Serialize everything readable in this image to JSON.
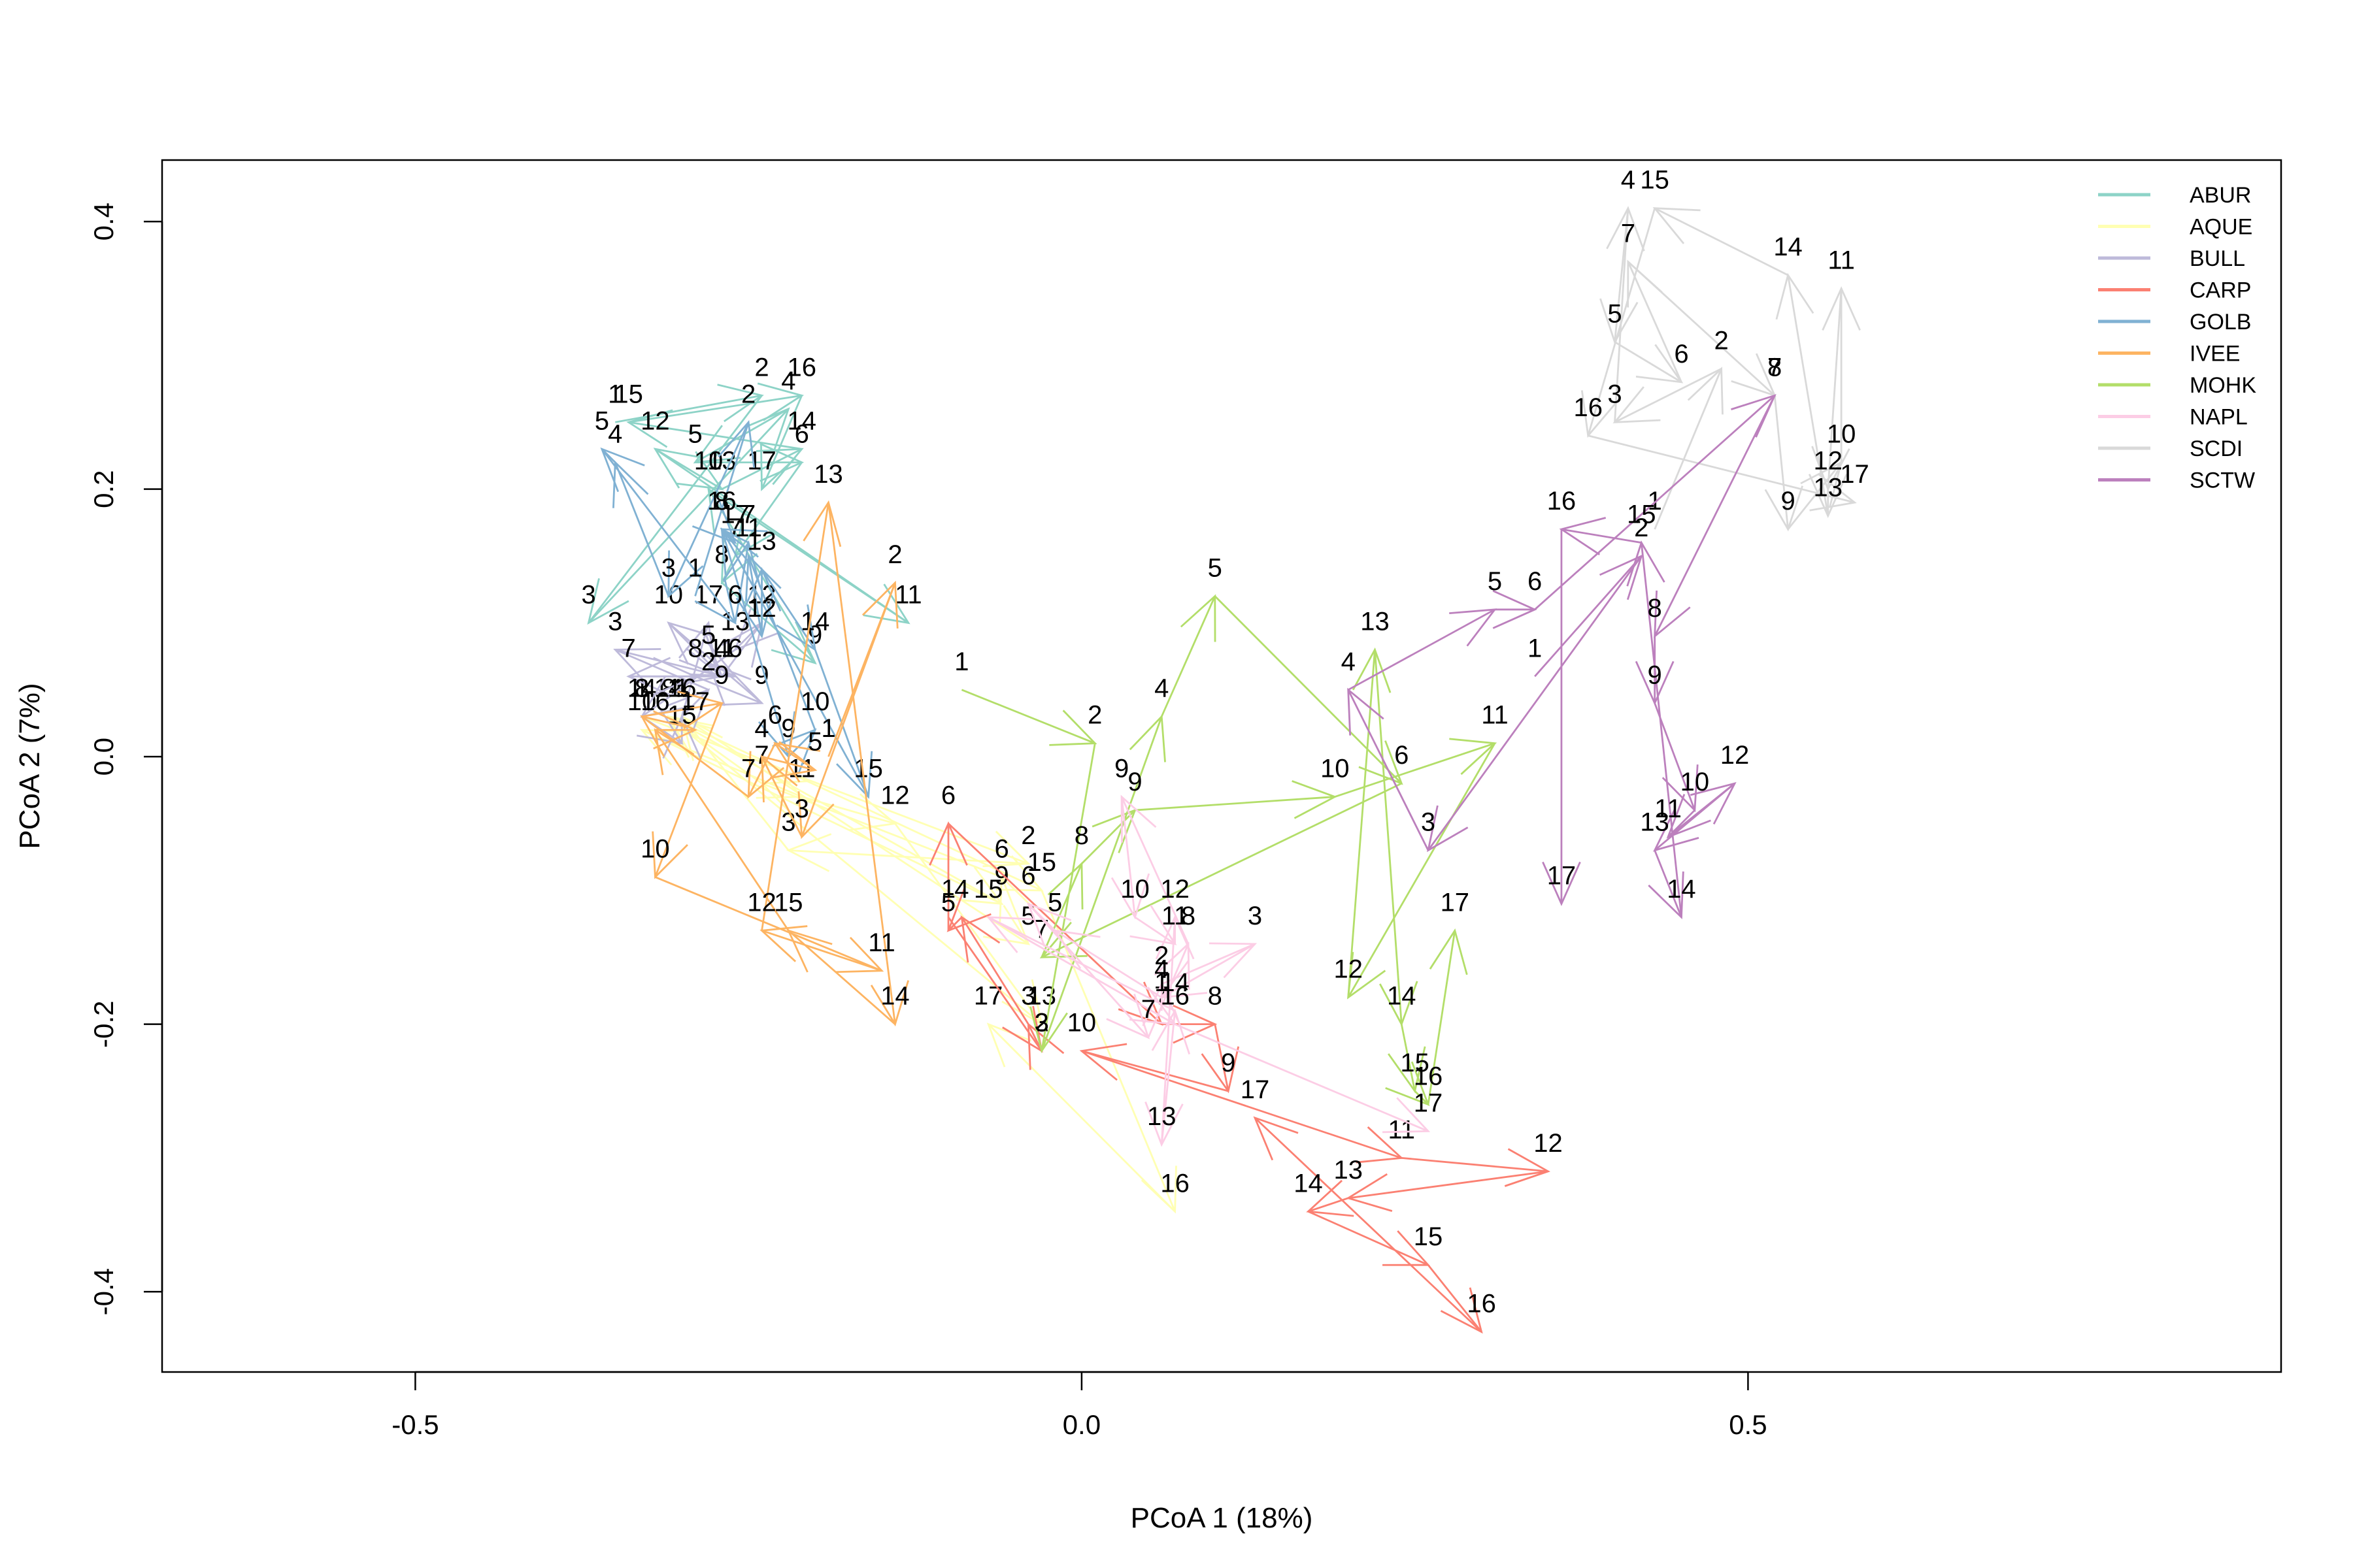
{
  "chart_data": {
    "type": "scatter",
    "xlabel": "PCoA 1 (18%)",
    "ylabel": "PCoA 2 (7%)",
    "xlim": [
      -0.69,
      0.9
    ],
    "ylim": [
      -0.46,
      0.446
    ],
    "x_ticks": [
      -0.5,
      0.0,
      0.5
    ],
    "x_tick_labels": [
      "-0.5",
      "0.0",
      "0.5"
    ],
    "y_ticks": [
      -0.4,
      -0.2,
      0.0,
      0.2,
      0.4
    ],
    "y_tick_labels": [
      "-0.4",
      "-0.2",
      "0.0",
      "0.2",
      "0.4"
    ],
    "legend_position": "top-right",
    "grid": false,
    "series": [
      {
        "name": "ABUR",
        "color": "#8DD3C7",
        "points": [
          {
            "label": "1",
            "x": -0.35,
            "y": 0.25
          },
          {
            "label": "2",
            "x": -0.24,
            "y": 0.27
          },
          {
            "label": "3",
            "x": -0.37,
            "y": 0.1
          },
          {
            "label": "4",
            "x": -0.22,
            "y": 0.26
          },
          {
            "label": "5",
            "x": -0.29,
            "y": 0.22
          },
          {
            "label": "6",
            "x": -0.21,
            "y": 0.22
          },
          {
            "label": "7",
            "x": -0.26,
            "y": 0.15
          },
          {
            "label": "8",
            "x": -0.27,
            "y": 0.13
          },
          {
            "label": "9",
            "x": -0.2,
            "y": 0.07
          },
          {
            "label": "10",
            "x": -0.28,
            "y": 0.2
          },
          {
            "label": "11",
            "x": -0.13,
            "y": 0.1
          },
          {
            "label": "12",
            "x": -0.32,
            "y": 0.23
          },
          {
            "label": "13",
            "x": -0.27,
            "y": 0.2
          },
          {
            "label": "14",
            "x": -0.21,
            "y": 0.23
          },
          {
            "label": "15",
            "x": -0.34,
            "y": 0.25
          },
          {
            "label": "16",
            "x": -0.21,
            "y": 0.27
          },
          {
            "label": "17",
            "x": -0.24,
            "y": 0.2
          }
        ]
      },
      {
        "name": "AQUE",
        "color": "#FFFFB3",
        "points": [
          {
            "label": "1",
            "x": -0.33,
            "y": 0.03
          },
          {
            "label": "2",
            "x": -0.04,
            "y": -0.08
          },
          {
            "label": "3",
            "x": -0.22,
            "y": -0.07
          },
          {
            "label": "4",
            "x": -0.3,
            "y": 0.03
          },
          {
            "label": "5",
            "x": -0.04,
            "y": -0.14
          },
          {
            "label": "6",
            "x": -0.06,
            "y": -0.09
          },
          {
            "label": "7",
            "x": -0.24,
            "y": -0.02
          },
          {
            "label": "8",
            "x": -0.31,
            "y": 0.03
          },
          {
            "label": "9",
            "x": -0.06,
            "y": -0.11
          },
          {
            "label": "10",
            "x": -0.33,
            "y": 0.02
          },
          {
            "label": "11",
            "x": -0.21,
            "y": -0.03
          },
          {
            "label": "12",
            "x": -0.14,
            "y": -0.05
          },
          {
            "label": "13",
            "x": -0.03,
            "y": -0.2
          },
          {
            "label": "14",
            "x": -0.31,
            "y": 0.03
          },
          {
            "label": "15",
            "x": -0.03,
            "y": -0.1
          },
          {
            "label": "16",
            "x": 0.07,
            "y": -0.34
          },
          {
            "label": "17",
            "x": -0.07,
            "y": -0.2
          }
        ]
      },
      {
        "name": "BULL",
        "color": "#BEBADA",
        "points": [
          {
            "label": "1",
            "x": -0.3,
            "y": 0.03
          },
          {
            "label": "2",
            "x": -0.28,
            "y": 0.05
          },
          {
            "label": "3",
            "x": -0.35,
            "y": 0.08
          },
          {
            "label": "4",
            "x": -0.27,
            "y": 0.06
          },
          {
            "label": "5",
            "x": -0.28,
            "y": 0.07
          },
          {
            "label": "6",
            "x": -0.26,
            "y": 0.06
          },
          {
            "label": "7",
            "x": -0.34,
            "y": 0.06
          },
          {
            "label": "8",
            "x": -0.29,
            "y": 0.06
          },
          {
            "label": "9",
            "x": -0.24,
            "y": 0.04
          },
          {
            "label": "10",
            "x": -0.31,
            "y": 0.1
          },
          {
            "label": "11",
            "x": -0.27,
            "y": 0.06
          },
          {
            "label": "12",
            "x": -0.24,
            "y": 0.1
          },
          {
            "label": "13",
            "x": -0.26,
            "y": 0.08
          },
          {
            "label": "14",
            "x": -0.33,
            "y": 0.03
          },
          {
            "label": "15",
            "x": -0.3,
            "y": 0.01
          },
          {
            "label": "16",
            "x": -0.3,
            "y": 0.03
          },
          {
            "label": "17",
            "x": -0.28,
            "y": 0.1
          }
        ]
      },
      {
        "name": "CARP",
        "color": "#FB8072",
        "points": [
          {
            "label": "1",
            "x": -0.1,
            "y": -0.12
          },
          {
            "label": "2",
            "x": -0.03,
            "y": -0.22
          },
          {
            "label": "3",
            "x": -0.04,
            "y": -0.2
          },
          {
            "label": "4",
            "x": -0.09,
            "y": -0.12
          },
          {
            "label": "5",
            "x": -0.1,
            "y": -0.13
          },
          {
            "label": "6",
            "x": -0.1,
            "y": -0.05
          },
          {
            "label": "7",
            "x": 0.06,
            "y": -0.2
          },
          {
            "label": "8",
            "x": 0.1,
            "y": -0.2
          },
          {
            "label": "9",
            "x": 0.11,
            "y": -0.25
          },
          {
            "label": "10",
            "x": 0.0,
            "y": -0.22
          },
          {
            "label": "11",
            "x": 0.24,
            "y": -0.3
          },
          {
            "label": "12",
            "x": 0.35,
            "y": -0.31
          },
          {
            "label": "13",
            "x": 0.2,
            "y": -0.33
          },
          {
            "label": "14",
            "x": 0.17,
            "y": -0.34
          },
          {
            "label": "15",
            "x": 0.26,
            "y": -0.38
          },
          {
            "label": "16",
            "x": 0.3,
            "y": -0.43
          },
          {
            "label": "17",
            "x": 0.13,
            "y": -0.27
          }
        ]
      },
      {
        "name": "GOLB",
        "color": "#80B1D3",
        "points": [
          {
            "label": "1",
            "x": -0.29,
            "y": 0.12
          },
          {
            "label": "2",
            "x": -0.25,
            "y": 0.25
          },
          {
            "label": "3",
            "x": -0.31,
            "y": 0.12
          },
          {
            "label": "4",
            "x": -0.35,
            "y": 0.22
          },
          {
            "label": "5",
            "x": -0.36,
            "y": 0.23
          },
          {
            "label": "6",
            "x": -0.26,
            "y": 0.1
          },
          {
            "label": "7",
            "x": -0.25,
            "y": 0.16
          },
          {
            "label": "8",
            "x": -0.27,
            "y": 0.17
          },
          {
            "label": "9",
            "x": -0.22,
            "y": 0.0
          },
          {
            "label": "10",
            "x": -0.2,
            "y": 0.02
          },
          {
            "label": "11",
            "x": -0.25,
            "y": 0.15
          },
          {
            "label": "12",
            "x": -0.24,
            "y": 0.09
          },
          {
            "label": "13",
            "x": -0.24,
            "y": 0.14
          },
          {
            "label": "14",
            "x": -0.2,
            "y": 0.08
          },
          {
            "label": "15",
            "x": -0.16,
            "y": -0.03
          },
          {
            "label": "16",
            "x": -0.27,
            "y": 0.17
          },
          {
            "label": "17",
            "x": -0.26,
            "y": 0.16
          }
        ]
      },
      {
        "name": "IVEE",
        "color": "#FDB462",
        "points": [
          {
            "label": "1",
            "x": -0.19,
            "y": 0.0
          },
          {
            "label": "2",
            "x": -0.14,
            "y": 0.13
          },
          {
            "label": "3",
            "x": -0.21,
            "y": -0.06
          },
          {
            "label": "4",
            "x": -0.24,
            "y": 0.0
          },
          {
            "label": "5",
            "x": -0.2,
            "y": -0.01
          },
          {
            "label": "6",
            "x": -0.23,
            "y": 0.01
          },
          {
            "label": "7",
            "x": -0.25,
            "y": -0.03
          },
          {
            "label": "8",
            "x": -0.33,
            "y": 0.03
          },
          {
            "label": "9",
            "x": -0.27,
            "y": 0.04
          },
          {
            "label": "10",
            "x": -0.32,
            "y": -0.09
          },
          {
            "label": "11",
            "x": -0.15,
            "y": -0.16
          },
          {
            "label": "12",
            "x": -0.24,
            "y": -0.13
          },
          {
            "label": "13",
            "x": -0.19,
            "y": 0.19
          },
          {
            "label": "14",
            "x": -0.14,
            "y": -0.2
          },
          {
            "label": "15",
            "x": -0.22,
            "y": -0.13
          },
          {
            "label": "16",
            "x": -0.32,
            "y": 0.02
          },
          {
            "label": "17",
            "x": -0.29,
            "y": 0.02
          }
        ]
      },
      {
        "name": "MOHK",
        "color": "#B3DE69",
        "points": [
          {
            "label": "1",
            "x": -0.09,
            "y": 0.05
          },
          {
            "label": "2",
            "x": 0.01,
            "y": 0.01
          },
          {
            "label": "3",
            "x": -0.03,
            "y": -0.22
          },
          {
            "label": "4",
            "x": 0.06,
            "y": 0.03
          },
          {
            "label": "5",
            "x": 0.1,
            "y": 0.12
          },
          {
            "label": "6",
            "x": 0.24,
            "y": -0.02
          },
          {
            "label": "7",
            "x": -0.03,
            "y": -0.15
          },
          {
            "label": "8",
            "x": 0.0,
            "y": -0.08
          },
          {
            "label": "9",
            "x": 0.04,
            "y": -0.04
          },
          {
            "label": "10",
            "x": 0.19,
            "y": -0.03
          },
          {
            "label": "11",
            "x": 0.31,
            "y": 0.01
          },
          {
            "label": "12",
            "x": 0.2,
            "y": -0.18
          },
          {
            "label": "13",
            "x": 0.22,
            "y": 0.08
          },
          {
            "label": "14",
            "x": 0.24,
            "y": -0.2
          },
          {
            "label": "15",
            "x": 0.25,
            "y": -0.25
          },
          {
            "label": "16",
            "x": 0.26,
            "y": -0.26
          },
          {
            "label": "17",
            "x": 0.28,
            "y": -0.13
          }
        ]
      },
      {
        "name": "NAPL",
        "color": "#FCCDE5",
        "points": [
          {
            "label": "1",
            "x": 0.06,
            "y": -0.19
          },
          {
            "label": "2",
            "x": 0.06,
            "y": -0.17
          },
          {
            "label": "3",
            "x": 0.13,
            "y": -0.14
          },
          {
            "label": "4",
            "x": 0.06,
            "y": -0.18
          },
          {
            "label": "5",
            "x": -0.02,
            "y": -0.13
          },
          {
            "label": "6",
            "x": -0.04,
            "y": -0.11
          },
          {
            "label": "7",
            "x": 0.05,
            "y": -0.21
          },
          {
            "label": "8",
            "x": 0.08,
            "y": -0.14
          },
          {
            "label": "9",
            "x": 0.03,
            "y": -0.03
          },
          {
            "label": "10",
            "x": 0.04,
            "y": -0.12
          },
          {
            "label": "11",
            "x": 0.07,
            "y": -0.14
          },
          {
            "label": "12",
            "x": 0.07,
            "y": -0.12
          },
          {
            "label": "13",
            "x": 0.06,
            "y": -0.29
          },
          {
            "label": "14",
            "x": 0.07,
            "y": -0.19
          },
          {
            "label": "15",
            "x": -0.07,
            "y": -0.12
          },
          {
            "label": "16",
            "x": 0.07,
            "y": -0.2
          },
          {
            "label": "17",
            "x": 0.26,
            "y": -0.28
          }
        ]
      },
      {
        "name": "SCDI",
        "color": "#D9D9D9",
        "points": [
          {
            "label": "1",
            "x": 0.43,
            "y": 0.17
          },
          {
            "label": "2",
            "x": 0.48,
            "y": 0.29
          },
          {
            "label": "3",
            "x": 0.4,
            "y": 0.25
          },
          {
            "label": "4",
            "x": 0.41,
            "y": 0.41
          },
          {
            "label": "5",
            "x": 0.4,
            "y": 0.31
          },
          {
            "label": "6",
            "x": 0.45,
            "y": 0.28
          },
          {
            "label": "7",
            "x": 0.41,
            "y": 0.37
          },
          {
            "label": "8",
            "x": 0.52,
            "y": 0.27
          },
          {
            "label": "9",
            "x": 0.53,
            "y": 0.17
          },
          {
            "label": "10",
            "x": 0.57,
            "y": 0.22
          },
          {
            "label": "11",
            "x": 0.57,
            "y": 0.35
          },
          {
            "label": "12",
            "x": 0.56,
            "y": 0.2
          },
          {
            "label": "13",
            "x": 0.56,
            "y": 0.18
          },
          {
            "label": "14",
            "x": 0.53,
            "y": 0.36
          },
          {
            "label": "15",
            "x": 0.43,
            "y": 0.41
          },
          {
            "label": "16",
            "x": 0.38,
            "y": 0.24
          },
          {
            "label": "17",
            "x": 0.58,
            "y": 0.19
          }
        ]
      },
      {
        "name": "SCTW",
        "color": "#BC80BD",
        "points": [
          {
            "label": "1",
            "x": 0.34,
            "y": 0.06
          },
          {
            "label": "2",
            "x": 0.42,
            "y": 0.15
          },
          {
            "label": "3",
            "x": 0.26,
            "y": -0.07
          },
          {
            "label": "4",
            "x": 0.2,
            "y": 0.05
          },
          {
            "label": "5",
            "x": 0.31,
            "y": 0.11
          },
          {
            "label": "6",
            "x": 0.34,
            "y": 0.11
          },
          {
            "label": "7",
            "x": 0.52,
            "y": 0.27
          },
          {
            "label": "8",
            "x": 0.43,
            "y": 0.09
          },
          {
            "label": "9",
            "x": 0.43,
            "y": 0.04
          },
          {
            "label": "10",
            "x": 0.46,
            "y": -0.04
          },
          {
            "label": "11",
            "x": 0.44,
            "y": -0.06
          },
          {
            "label": "12",
            "x": 0.49,
            "y": -0.02
          },
          {
            "label": "13",
            "x": 0.43,
            "y": -0.07
          },
          {
            "label": "14",
            "x": 0.45,
            "y": -0.12
          },
          {
            "label": "15",
            "x": 0.42,
            "y": 0.16
          },
          {
            "label": "16",
            "x": 0.36,
            "y": 0.17
          },
          {
            "label": "17",
            "x": 0.36,
            "y": -0.11
          }
        ]
      }
    ]
  }
}
